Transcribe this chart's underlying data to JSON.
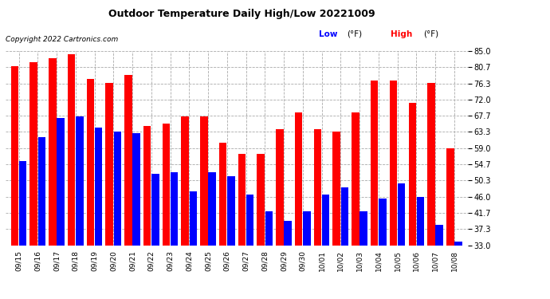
{
  "title": "Outdoor Temperature Daily High/Low 20221009",
  "copyright": "Copyright 2022 Cartronics.com",
  "legend_low": "Low",
  "legend_high": "High",
  "legend_unit": "(°F)",
  "low_color": "#0000ff",
  "high_color": "#ff0000",
  "background_color": "#ffffff",
  "grid_color": "#aaaaaa",
  "ymin": 33.0,
  "ymax": 85.0,
  "yticks": [
    33.0,
    37.3,
    41.7,
    46.0,
    50.3,
    54.7,
    59.0,
    63.3,
    67.7,
    72.0,
    76.3,
    80.7,
    85.0
  ],
  "dates": [
    "09/15",
    "09/16",
    "09/17",
    "09/18",
    "09/19",
    "09/20",
    "09/21",
    "09/22",
    "09/23",
    "09/24",
    "09/25",
    "09/26",
    "09/27",
    "09/28",
    "09/29",
    "09/30",
    "10/01",
    "10/02",
    "10/03",
    "10/04",
    "10/05",
    "10/06",
    "10/07",
    "10/08"
  ],
  "highs": [
    81.0,
    82.0,
    83.0,
    84.0,
    77.5,
    76.5,
    78.5,
    65.0,
    65.5,
    67.5,
    67.5,
    60.5,
    57.5,
    57.5,
    64.0,
    68.5,
    64.0,
    63.5,
    68.5,
    77.0,
    77.0,
    71.0,
    76.5,
    59.0
  ],
  "lows": [
    55.5,
    62.0,
    67.0,
    67.5,
    64.5,
    63.5,
    63.0,
    52.0,
    52.5,
    47.5,
    52.5,
    51.5,
    46.5,
    42.0,
    39.5,
    42.0,
    46.5,
    48.5,
    42.0,
    45.5,
    49.5,
    46.0,
    38.5,
    34.0
  ]
}
